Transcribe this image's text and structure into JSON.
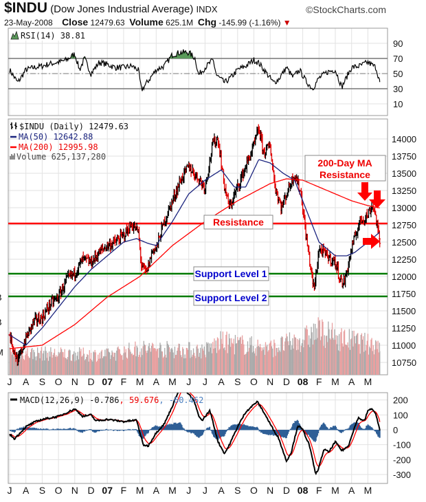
{
  "header": {
    "symbol": "$INDU",
    "name": "(Dow Jones Industrial Average)",
    "exchange": "INDX",
    "brand": "©StockCharts.com",
    "date": "23-May-2008",
    "close_label": "Close",
    "close": "12479.63",
    "volume_label": "Volume",
    "volume": "625.1M",
    "chg_label": "Chg",
    "chg": "-145.99 (-1.16%)",
    "chg_arrow": "▼"
  },
  "colors": {
    "up": "#000000",
    "down": "#e00000",
    "ma50": "#1a237e",
    "ma200": "#ff0000",
    "macd_hist": "#2f5f96",
    "support": "#007a00",
    "resistance": "#ff0000",
    "grid": "#e2e2e2"
  },
  "chart_data": [
    {
      "type": "line",
      "title": "RSI(14) 38.81",
      "legend": "RSI(14) 38.81",
      "ylim": [
        0,
        100
      ],
      "yticks": [
        "90",
        "70",
        "50",
        "30",
        "10"
      ],
      "x_unit": "months since Jul 2006",
      "series": [
        {
          "name": "RSI(14)",
          "points": [
            [
              0,
              55
            ],
            [
              0.5,
              38
            ],
            [
              1,
              55
            ],
            [
              1.5,
              58
            ],
            [
              2,
              60
            ],
            [
              2.5,
              63
            ],
            [
              3,
              65
            ],
            [
              3.5,
              68
            ],
            [
              4,
              76
            ],
            [
              4.3,
              55
            ],
            [
              4.6,
              70
            ],
            [
              5,
              50
            ],
            [
              5.5,
              65
            ],
            [
              6,
              62
            ],
            [
              6.5,
              58
            ],
            [
              7,
              58
            ],
            [
              7.5,
              60
            ],
            [
              7.9,
              55
            ],
            [
              8.1,
              28
            ],
            [
              8.5,
              40
            ],
            [
              9,
              55
            ],
            [
              9.5,
              60
            ],
            [
              10,
              75
            ],
            [
              10.5,
              78
            ],
            [
              11,
              78
            ],
            [
              11.4,
              70
            ],
            [
              11.6,
              48
            ],
            [
              12,
              58
            ],
            [
              12.5,
              68
            ],
            [
              12.7,
              48
            ],
            [
              13.2,
              38
            ],
            [
              13.6,
              45
            ],
            [
              14,
              55
            ],
            [
              14.5,
              60
            ],
            [
              15,
              68
            ],
            [
              15.3,
              64
            ],
            [
              15.8,
              50
            ],
            [
              16.2,
              38
            ],
            [
              16.5,
              42
            ],
            [
              17,
              58
            ],
            [
              17.4,
              45
            ],
            [
              17.8,
              55
            ],
            [
              18.2,
              40
            ],
            [
              18.6,
              30
            ],
            [
              19,
              44
            ],
            [
              19.5,
              52
            ],
            [
              20,
              55
            ],
            [
              20.4,
              32
            ],
            [
              20.8,
              50
            ],
            [
              21,
              58
            ],
            [
              21.5,
              60
            ],
            [
              22,
              65
            ],
            [
              22.5,
              58
            ],
            [
              22.73,
              38.81
            ]
          ]
        }
      ]
    },
    {
      "type": "line",
      "title": "$INDU (Daily) 12479.63",
      "ylim": [
        10600,
        14300
      ],
      "yticks": [
        "14000",
        "13750",
        "13500",
        "13250",
        "13000",
        "12750",
        "12500",
        "12250",
        "12000",
        "11750",
        "11500",
        "11250",
        "11000",
        "10750"
      ],
      "left_partial_labels": [
        "B",
        "B",
        "M"
      ],
      "legend": [
        "$INDU (Daily) 12479.63",
        "MA(50) 12642.88",
        "MA(200) 12995.98",
        "Volume 625,137,280"
      ],
      "xticks": [
        "J",
        "A",
        "S",
        "O",
        "N",
        "D",
        "07",
        "F",
        "M",
        "A",
        "M",
        "J",
        "J",
        "A",
        "S",
        "O",
        "N",
        "D",
        "08",
        "F",
        "M",
        "A",
        "M"
      ],
      "series": [
        {
          "name": "$INDU",
          "points": [
            [
              0,
              11150
            ],
            [
              0.5,
              10750
            ],
            [
              1,
              11100
            ],
            [
              1.5,
              11350
            ],
            [
              2,
              11400
            ],
            [
              2.5,
              11600
            ],
            [
              3,
              11700
            ],
            [
              3.5,
              11950
            ],
            [
              4,
              12050
            ],
            [
              4.5,
              12250
            ],
            [
              5,
              12200
            ],
            [
              5.5,
              12350
            ],
            [
              6,
              12450
            ],
            [
              6.5,
              12500
            ],
            [
              7,
              12600
            ],
            [
              7.5,
              12750
            ],
            [
              7.9,
              12650
            ],
            [
              8.1,
              12150
            ],
            [
              8.4,
              12050
            ],
            [
              8.8,
              12400
            ],
            [
              9,
              12400
            ],
            [
              9.5,
              12800
            ],
            [
              10,
              13100
            ],
            [
              10.5,
              13400
            ],
            [
              11,
              13600
            ],
            [
              11.5,
              13450
            ],
            [
              12,
              13300
            ],
            [
              12.5,
              13950
            ],
            [
              12.8,
              14000
            ],
            [
              13.2,
              13300
            ],
            [
              13.5,
              13000
            ],
            [
              14,
              13300
            ],
            [
              14.5,
              13600
            ],
            [
              15,
              13900
            ],
            [
              15.3,
              14150
            ],
            [
              15.6,
              13800
            ],
            [
              16,
              13900
            ],
            [
              16.3,
              13300
            ],
            [
              16.7,
              13000
            ],
            [
              17,
              13200
            ],
            [
              17.5,
              13500
            ],
            [
              17.9,
              13200
            ],
            [
              18.2,
              12600
            ],
            [
              18.5,
              12100
            ],
            [
              18.7,
              11800
            ],
            [
              19,
              12400
            ],
            [
              19.5,
              12300
            ],
            [
              20,
              12200
            ],
            [
              20.4,
              11900
            ],
            [
              20.6,
              11950
            ],
            [
              21,
              12400
            ],
            [
              21.5,
              12800
            ],
            [
              22,
              12900
            ],
            [
              22.3,
              13050
            ],
            [
              22.5,
              12850
            ],
            [
              22.73,
              12480
            ]
          ]
        },
        {
          "name": "MA(50)",
          "points": [
            [
              0,
              11150
            ],
            [
              1,
              11000
            ],
            [
              2,
              11250
            ],
            [
              3,
              11550
            ],
            [
              4,
              11850
            ],
            [
              5,
              12100
            ],
            [
              6,
              12300
            ],
            [
              7,
              12500
            ],
            [
              7.8,
              12550
            ],
            [
              8.5,
              12480
            ],
            [
              9,
              12450
            ],
            [
              10,
              12800
            ],
            [
              11,
              13200
            ],
            [
              12,
              13400
            ],
            [
              13,
              13550
            ],
            [
              13.8,
              13300
            ],
            [
              14.5,
              13300
            ],
            [
              15.3,
              13700
            ],
            [
              16,
              13650
            ],
            [
              16.8,
              13500
            ],
            [
              17.5,
              13400
            ],
            [
              18,
              13100
            ],
            [
              18.5,
              12800
            ],
            [
              19,
              12500
            ],
            [
              19.5,
              12400
            ],
            [
              20,
              12300
            ],
            [
              20.7,
              12300
            ],
            [
              21.2,
              12350
            ],
            [
              22,
              12500
            ],
            [
              22.73,
              12643
            ]
          ]
        },
        {
          "name": "MA(200)",
          "points": [
            [
              0,
              10950
            ],
            [
              2,
              11000
            ],
            [
              4,
              11300
            ],
            [
              6,
              11700
            ],
            [
              8,
              12000
            ],
            [
              10,
              12450
            ],
            [
              12,
              12800
            ],
            [
              14,
              13100
            ],
            [
              16,
              13350
            ],
            [
              17,
              13420
            ],
            [
              18,
              13400
            ],
            [
              19,
              13300
            ],
            [
              20,
              13200
            ],
            [
              21,
              13100
            ],
            [
              22,
              13030
            ],
            [
              22.73,
              12996
            ]
          ]
        },
        {
          "name": "Volume (relative)",
          "points": [
            [
              0,
              0.5
            ],
            [
              6,
              0.45
            ],
            [
              8,
              0.6
            ],
            [
              12,
              0.55
            ],
            [
              13,
              0.75
            ],
            [
              16,
              0.6
            ],
            [
              18,
              0.8
            ],
            [
              19,
              1.0
            ],
            [
              20,
              0.85
            ],
            [
              22,
              0.7
            ],
            [
              22.73,
              0.7
            ]
          ]
        }
      ],
      "levels": [
        {
          "name": "Resistance",
          "value": 12770
        },
        {
          "name": "Support Level 1",
          "value": 12040
        },
        {
          "name": "Support Level 2",
          "value": 11710
        }
      ],
      "annotations": [
        "Resistance",
        "Support Level 1",
        "Support Level 2",
        "200-Day MA",
        "Resistance"
      ]
    },
    {
      "type": "line",
      "title": "MACD(12,26,9)",
      "legend": {
        "label": "MACD(12,26,9)",
        "macd": "-0.786",
        "signal": ", 59.676",
        "hist": ", -60.462"
      },
      "ylim": [
        -350,
        230
      ],
      "yticks": [
        "200",
        "100",
        "0",
        "-100",
        "-200",
        "-300"
      ],
      "series": [
        {
          "name": "MACD",
          "points": [
            [
              0,
              -30
            ],
            [
              0.3,
              -60
            ],
            [
              1,
              20
            ],
            [
              1.5,
              50
            ],
            [
              2,
              70
            ],
            [
              3,
              90
            ],
            [
              4,
              140
            ],
            [
              4.5,
              90
            ],
            [
              5,
              100
            ],
            [
              5.3,
              60
            ],
            [
              6,
              70
            ],
            [
              7,
              55
            ],
            [
              7.8,
              65
            ],
            [
              8.2,
              -100
            ],
            [
              8.5,
              -110
            ],
            [
              9,
              -20
            ],
            [
              9.5,
              40
            ],
            [
              10,
              160
            ],
            [
              10.5,
              300
            ],
            [
              11.3,
              200
            ],
            [
              11.6,
              100
            ],
            [
              11.8,
              60
            ],
            [
              12.3,
              130
            ],
            [
              12.8,
              -80
            ],
            [
              13.2,
              -160
            ],
            [
              13.5,
              -100
            ],
            [
              14,
              20
            ],
            [
              14.5,
              120
            ],
            [
              15.2,
              190
            ],
            [
              15.6,
              120
            ],
            [
              16.2,
              0
            ],
            [
              16.5,
              -50
            ],
            [
              17,
              -210
            ],
            [
              17.3,
              -150
            ],
            [
              17.7,
              30
            ],
            [
              18,
              0
            ],
            [
              18.4,
              -100
            ],
            [
              18.8,
              -300
            ],
            [
              19,
              -250
            ],
            [
              19.3,
              -130
            ],
            [
              19.6,
              -150
            ],
            [
              20,
              -80
            ],
            [
              20.4,
              -140
            ],
            [
              20.8,
              -110
            ],
            [
              21,
              -40
            ],
            [
              21.4,
              80
            ],
            [
              21.8,
              60
            ],
            [
              22,
              130
            ],
            [
              22.3,
              140
            ],
            [
              22.5,
              100
            ],
            [
              22.73,
              -0.786
            ]
          ]
        }
      ]
    }
  ]
}
